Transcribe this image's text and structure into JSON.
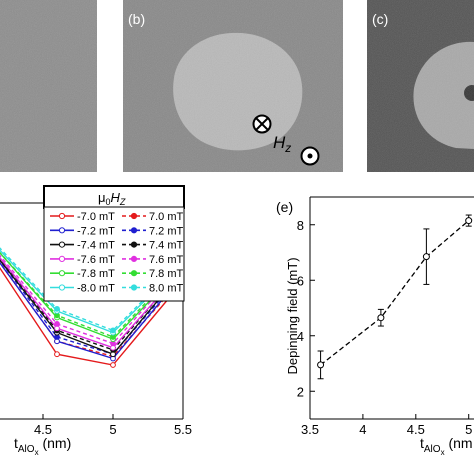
{
  "panels": {
    "b_label": "(b)",
    "c_label": "(c)",
    "e_label": "(e)"
  },
  "annotation": {
    "field_symbol": "H",
    "field_subscript": "z"
  },
  "legend": {
    "title_mu": "μ",
    "title_sub0": "0",
    "title_H": "H",
    "title_subz": "Z",
    "solid_labels": [
      "-7.0 mT",
      "-7.2 mT",
      "-7.4 mT",
      "-7.6 mT",
      "-7.8 mT",
      "-8.0 mT"
    ],
    "dashed_labels": [
      "7.0 mT",
      "7.2 mT",
      "7.4 mT",
      "7.6 mT",
      "7.8 mT",
      "8.0 mT"
    ],
    "colors": [
      "#e41a1c",
      "#1f1fd0",
      "#111111",
      "#e030e0",
      "#33dd33",
      "#33dddd"
    ]
  },
  "chart_data": [
    {
      "type": "line",
      "panel": "left (partial)",
      "xlabel_main": "t",
      "xlabel_sub": "AlO",
      "xlabel_subsub": "x",
      "xlabel_unit": " (nm)",
      "xticks": [
        "4.5",
        "5",
        "5.5"
      ],
      "xlim": [
        4.05,
        5.5
      ],
      "ylim": [
        0,
        1
      ],
      "x": [
        4.15,
        4.6,
        5.0,
        5.4
      ],
      "series": [
        {
          "name": "-7.0 mT",
          "style": "solid",
          "color": "#e41a1c",
          "values": [
            0.74,
            0.3,
            0.25,
            0.56
          ]
        },
        {
          "name": "7.0 mT",
          "style": "dashed",
          "color": "#e41a1c",
          "values": [
            0.76,
            0.36,
            0.29,
            0.58
          ]
        },
        {
          "name": "-7.2 mT",
          "style": "solid",
          "color": "#1f1fd0",
          "values": [
            0.76,
            0.36,
            0.28,
            0.59
          ]
        },
        {
          "name": "7.2 mT",
          "style": "dashed",
          "color": "#1f1fd0",
          "values": [
            0.77,
            0.38,
            0.3,
            0.6
          ]
        },
        {
          "name": "-7.4 mT",
          "style": "solid",
          "color": "#111111",
          "values": [
            0.77,
            0.4,
            0.3,
            0.61
          ]
        },
        {
          "name": "7.4 mT",
          "style": "dashed",
          "color": "#111111",
          "values": [
            0.78,
            0.41,
            0.32,
            0.62
          ]
        },
        {
          "name": "-7.6 mT",
          "style": "solid",
          "color": "#e030e0",
          "values": [
            0.78,
            0.42,
            0.33,
            0.62
          ]
        },
        {
          "name": "7.6 mT",
          "style": "dashed",
          "color": "#e030e0",
          "values": [
            0.79,
            0.44,
            0.35,
            0.64
          ]
        },
        {
          "name": "-7.8 mT",
          "style": "solid",
          "color": "#33dd33",
          "values": [
            0.8,
            0.47,
            0.37,
            0.64
          ]
        },
        {
          "name": "7.8 mT",
          "style": "dashed",
          "color": "#33dd33",
          "values": [
            0.8,
            0.48,
            0.38,
            0.65
          ]
        },
        {
          "name": "-8.0 mT",
          "style": "solid",
          "color": "#33dddd",
          "values": [
            0.81,
            0.5,
            0.4,
            0.66
          ]
        },
        {
          "name": "8.0 mT",
          "style": "dashed",
          "color": "#33dddd",
          "values": [
            0.82,
            0.51,
            0.41,
            0.67
          ]
        }
      ]
    },
    {
      "type": "line",
      "panel": "(e)",
      "ylabel": "Depinning field (mT)",
      "xlabel_main": "t",
      "xlabel_sub": "AlO",
      "xlabel_subsub": "x",
      "xlabel_unit": " (nm",
      "xticks": [
        "3.5",
        "4",
        "4.5",
        "5"
      ],
      "yticks": [
        "2",
        "4",
        "6",
        "8"
      ],
      "xlim": [
        3.5,
        5.05
      ],
      "ylim": [
        1.0,
        9.0
      ],
      "x": [
        3.6,
        4.17,
        4.6,
        5.0
      ],
      "values": [
        2.95,
        4.65,
        6.85,
        8.15
      ],
      "errors": [
        0.5,
        0.3,
        1.0,
        0.2
      ]
    }
  ]
}
